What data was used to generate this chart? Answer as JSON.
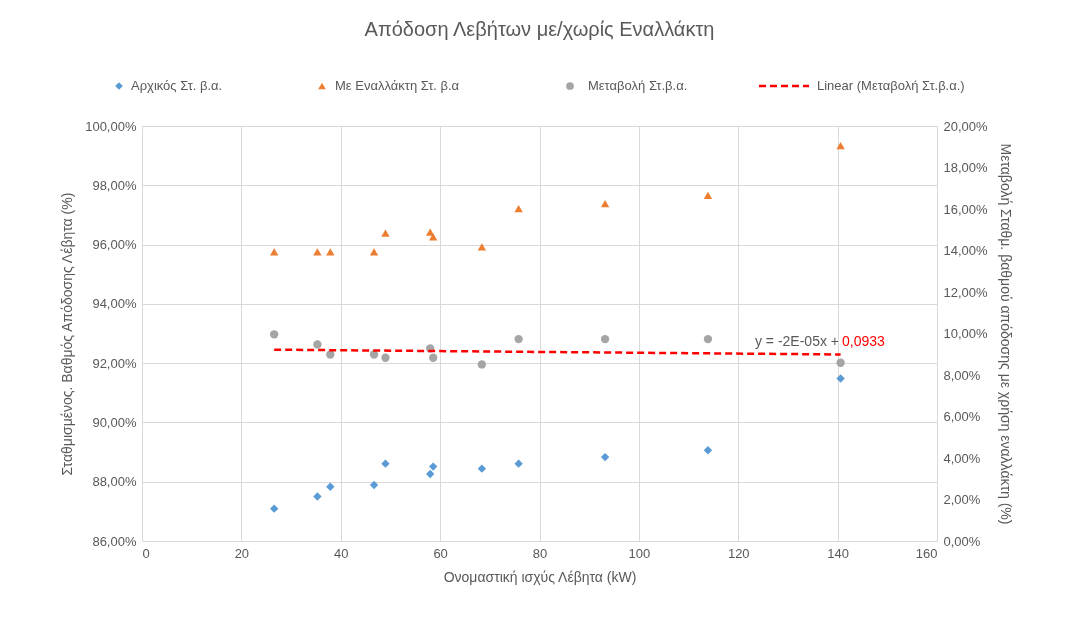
{
  "chart_data": {
    "type": "scatter",
    "title": "Απόδοση Λεβήτων με/χωρίς Εναλλάκτη",
    "xlabel": "Ονομαστική ισχύς Λέβητα (kW)",
    "ylabel": "Σταθμισμένος. Βαθμός Απόδοσης Λέβητα (%)",
    "y2label": "Μεταβολή Σταθμ. βαθμού απόδοσης με χρήση εναλλάκτη (%)",
    "x": [
      26.6,
      35.3,
      37.9,
      46.7,
      49.0,
      58.0,
      58.6,
      68.4,
      75.8,
      93.2,
      113.9,
      140.6
    ],
    "series": [
      {
        "name": "Αρχικός Στ. β.α.",
        "color": "#5b9bd5",
        "marker": "diamond",
        "values": [
          87.09,
          87.5,
          87.83,
          87.89,
          88.61,
          88.26,
          88.51,
          88.44,
          88.61,
          88.83,
          89.06,
          91.48
        ]
      },
      {
        "name": "Με Εναλλάκτη Στ. β.α",
        "color": "#ed7d31",
        "marker": "triangle",
        "values": [
          95.75,
          95.75,
          95.75,
          95.75,
          96.39,
          96.42,
          96.26,
          95.92,
          97.21,
          97.38,
          97.66,
          99.34
        ]
      },
      {
        "name": "Μεταβολή Στ.β.α.",
        "color": "#a5a5a5",
        "marker": "circle",
        "axis": "y2",
        "values": [
          9.96,
          9.47,
          8.99,
          8.99,
          8.83,
          9.28,
          8.83,
          8.51,
          9.73,
          9.73,
          9.73,
          8.59
        ]
      },
      {
        "name": "Linear (Μεταβολή Στ.β.α.)",
        "type": "line",
        "line_style": "dashed",
        "marker": "none",
        "color": "#ff0000",
        "axis": "y2",
        "x": [
          26.6,
          140.6
        ],
        "values": [
          9.22,
          8.99
        ]
      }
    ],
    "annotations": [
      "y = -2E-05x +",
      "0,0933"
    ],
    "xlim": [
      0,
      160
    ],
    "xticks": [
      0,
      20,
      40,
      60,
      80,
      100,
      120,
      140,
      160
    ],
    "ylim": [
      86,
      100
    ],
    "yticks": [
      {
        "value": 86,
        "label": "86,00%"
      },
      {
        "value": 88,
        "label": "88,00%"
      },
      {
        "value": 90,
        "label": "90,00%"
      },
      {
        "value": 92,
        "label": "92,00%"
      },
      {
        "value": 94,
        "label": "94,00%"
      },
      {
        "value": 96,
        "label": "96,00%"
      },
      {
        "value": 98,
        "label": "98,00%"
      },
      {
        "value": 100,
        "label": "100,00%"
      }
    ],
    "y2lim": [
      0,
      20
    ],
    "y2ticks": [
      {
        "value": 0,
        "label": "0,00%"
      },
      {
        "value": 2,
        "label": "2,00%"
      },
      {
        "value": 4,
        "label": "4,00%"
      },
      {
        "value": 6,
        "label": "6,00%"
      },
      {
        "value": 8,
        "label": "8,00%"
      },
      {
        "value": 10,
        "label": "10,00%"
      },
      {
        "value": 12,
        "label": "12,00%"
      },
      {
        "value": 14,
        "label": "14,00%"
      },
      {
        "value": 16,
        "label": "16,00%"
      },
      {
        "value": 18,
        "label": "18,00%"
      },
      {
        "value": 20,
        "label": "20,00%"
      }
    ],
    "grid": true,
    "legend": "top"
  }
}
